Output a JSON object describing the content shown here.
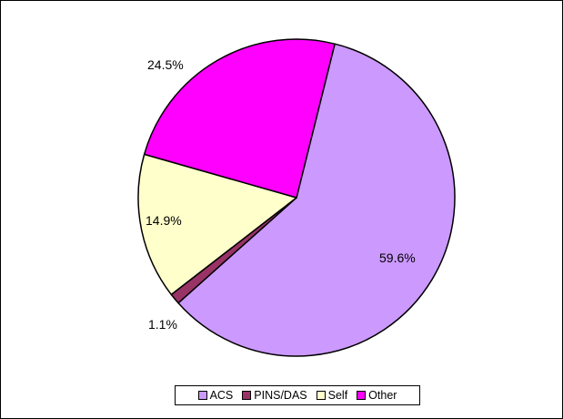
{
  "chart_data": {
    "type": "pie",
    "title": "",
    "categories": [
      "ACS",
      "PINS/DAS",
      "Self",
      "Other"
    ],
    "values": [
      59.6,
      1.1,
      14.9,
      24.5
    ],
    "labels": [
      "59.6%",
      "1.1%",
      "14.9%",
      "24.5%"
    ],
    "colors": [
      "#cc99ff",
      "#993366",
      "#ffffcc",
      "#ff00ff"
    ],
    "start_angle_deg": -76,
    "direction": "clockwise",
    "legend_position": "bottom"
  }
}
